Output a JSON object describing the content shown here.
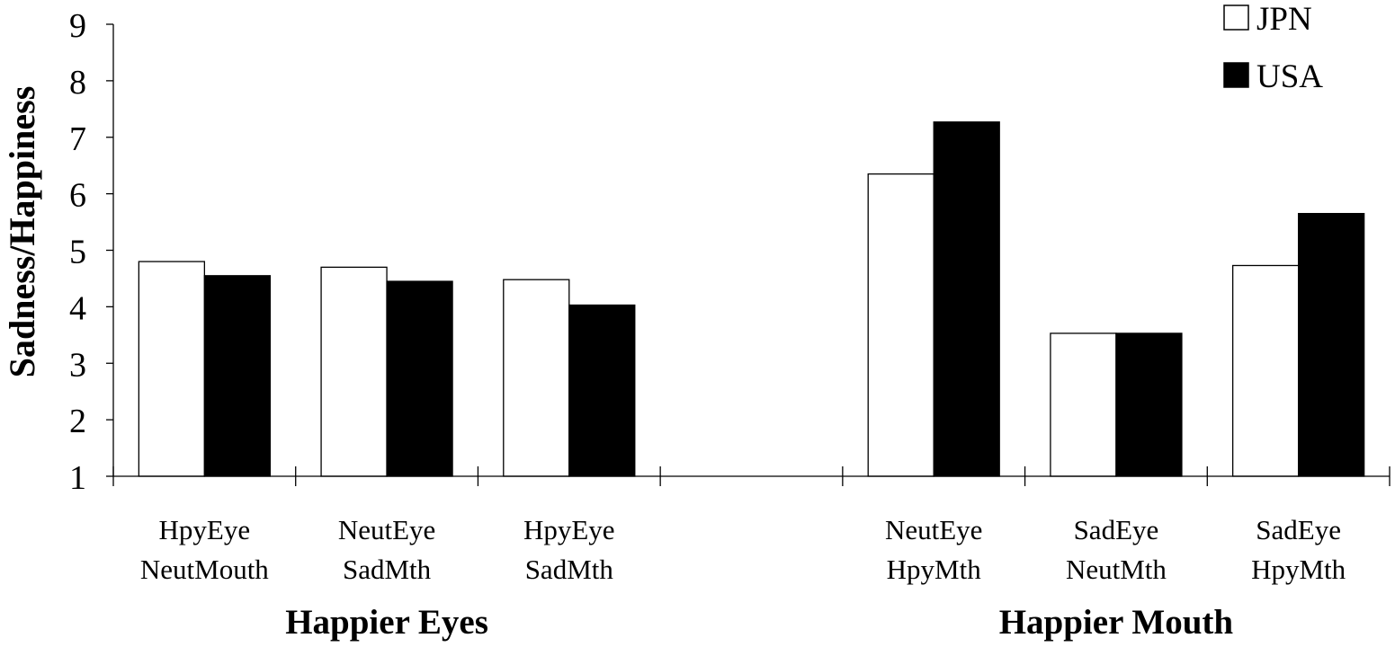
{
  "chart_data": {
    "type": "bar",
    "ylabel": "Sadness/Happiness",
    "ylim": [
      1,
      9
    ],
    "yticks": [
      1,
      2,
      3,
      4,
      5,
      6,
      7,
      8,
      9
    ],
    "grid": false,
    "legend_position": "top-right",
    "categories": [
      [
        "HpyEye",
        "NeutMouth"
      ],
      [
        "NeutEye",
        "SadMth"
      ],
      [
        "HpyEye",
        "SadMth"
      ],
      [],
      [
        "NeutEye",
        "HpyMth"
      ],
      [
        "SadEye",
        "NeutMth"
      ],
      [
        "SadEye",
        "HpyMth"
      ]
    ],
    "groups": [
      {
        "label": "Happier Eyes",
        "categories": [
          0,
          1,
          2
        ]
      },
      {
        "label": "Happier Mouth",
        "categories": [
          4,
          5,
          6
        ]
      }
    ],
    "series": [
      {
        "name": "JPN",
        "color": "#ffffff",
        "values": [
          4.8,
          4.7,
          4.48,
          null,
          6.35,
          3.53,
          4.73
        ]
      },
      {
        "name": "USA",
        "color": "#000000",
        "values": [
          4.55,
          4.45,
          4.03,
          null,
          7.27,
          3.53,
          5.65
        ]
      }
    ]
  }
}
